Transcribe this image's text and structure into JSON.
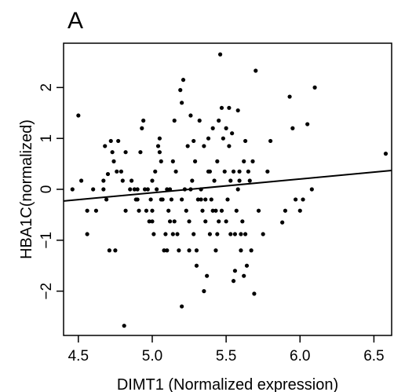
{
  "chart_data": {
    "type": "scatter",
    "panel_label": "A",
    "xlabel": "DIMT1 (Normalized expression)",
    "ylabel": "HBA1C(normalized)",
    "xlim": [
      4.4,
      6.62
    ],
    "ylim": [
      -2.87,
      2.87
    ],
    "x_ticks": [
      4.5,
      5.0,
      5.5,
      6.0,
      6.5
    ],
    "x_tick_labels": [
      "4.5",
      "5.0",
      "5.5",
      "6.0",
      "6.5"
    ],
    "y_ticks": [
      -2,
      -1,
      0,
      1,
      2
    ],
    "y_tick_labels": [
      "−2",
      "−1",
      "0",
      "1",
      "2"
    ],
    "grid": false,
    "fit_line": {
      "x": [
        4.4,
        6.62
      ],
      "y": [
        -0.23,
        0.37
      ]
    },
    "points": [
      [
        4.46,
        0.0
      ],
      [
        4.5,
        1.45
      ],
      [
        4.52,
        0.17
      ],
      [
        4.56,
        -0.42
      ],
      [
        4.56,
        -0.88
      ],
      [
        4.6,
        0.0
      ],
      [
        4.62,
        -0.42
      ],
      [
        4.67,
        0.17
      ],
      [
        4.67,
        0.0
      ],
      [
        4.68,
        0.85
      ],
      [
        4.69,
        -0.2
      ],
      [
        4.7,
        0.3
      ],
      [
        4.71,
        -1.2
      ],
      [
        4.72,
        0.95
      ],
      [
        4.73,
        0.73
      ],
      [
        4.74,
        0.55
      ],
      [
        4.75,
        -1.2
      ],
      [
        4.76,
        0.35
      ],
      [
        4.77,
        0.95
      ],
      [
        4.79,
        0.35
      ],
      [
        4.8,
        0.17
      ],
      [
        4.82,
        -0.42
      ],
      [
        4.81,
        -2.68
      ],
      [
        4.85,
        0.0
      ],
      [
        4.86,
        0.17
      ],
      [
        4.88,
        0.0
      ],
      [
        4.89,
        -0.2
      ],
      [
        4.9,
        0.0
      ],
      [
        4.91,
        -0.42
      ],
      [
        4.92,
        0.73
      ],
      [
        4.93,
        1.2
      ],
      [
        4.94,
        1.35
      ],
      [
        4.95,
        0.0
      ],
      [
        4.96,
        -0.42
      ],
      [
        4.97,
        0.0
      ],
      [
        4.98,
        -0.63
      ],
      [
        4.99,
        -0.2
      ],
      [
        5.0,
        -0.42
      ],
      [
        5.01,
        -0.88
      ],
      [
        5.02,
        0.35
      ],
      [
        5.03,
        0.0
      ],
      [
        5.04,
        0.85
      ],
      [
        5.05,
        0.73
      ],
      [
        5.06,
        0.55
      ],
      [
        5.07,
        -0.2
      ],
      [
        5.08,
        -1.2
      ],
      [
        5.09,
        -0.88
      ],
      [
        5.1,
        -1.2
      ],
      [
        5.11,
        -0.42
      ],
      [
        5.12,
        0.0
      ],
      [
        5.13,
        -0.2
      ],
      [
        5.14,
        0.55
      ],
      [
        5.15,
        -0.63
      ],
      [
        5.16,
        0.35
      ],
      [
        5.17,
        -0.88
      ],
      [
        5.18,
        -1.2
      ],
      [
        5.19,
        1.95
      ],
      [
        5.2,
        1.7
      ],
      [
        5.21,
        2.15
      ],
      [
        5.22,
        0.0
      ],
      [
        5.23,
        -0.42
      ],
      [
        5.24,
        0.85
      ],
      [
        5.25,
        -0.63
      ],
      [
        5.26,
        1.45
      ],
      [
        5.27,
        0.17
      ],
      [
        5.28,
        -0.88
      ],
      [
        5.29,
        0.55
      ],
      [
        5.3,
        -1.2
      ],
      [
        5.31,
        -0.2
      ],
      [
        5.32,
        1.35
      ],
      [
        5.33,
        0.0
      ],
      [
        5.34,
        -0.42
      ],
      [
        5.35,
        0.85
      ],
      [
        5.36,
        -0.63
      ],
      [
        5.37,
        -1.7
      ],
      [
        5.38,
        0.35
      ],
      [
        5.39,
        -0.88
      ],
      [
        5.4,
        -0.2
      ],
      [
        5.41,
        1.2
      ],
      [
        5.42,
        0.17
      ],
      [
        5.43,
        -0.42
      ],
      [
        5.44,
        0.55
      ],
      [
        5.45,
        -0.63
      ],
      [
        5.46,
        2.65
      ],
      [
        5.47,
        1.6
      ],
      [
        5.48,
        1.0
      ],
      [
        5.49,
        0.35
      ],
      [
        5.5,
        1.2
      ],
      [
        5.51,
        -0.2
      ],
      [
        5.52,
        0.85
      ],
      [
        5.53,
        -0.88
      ],
      [
        5.54,
        1.1
      ],
      [
        5.55,
        0.35
      ],
      [
        5.56,
        -1.6
      ],
      [
        5.57,
        -0.42
      ],
      [
        5.58,
        0.0
      ],
      [
        5.59,
        0.17
      ],
      [
        5.6,
        -1.2
      ],
      [
        5.61,
        -0.63
      ],
      [
        5.62,
        0.55
      ],
      [
        5.63,
        -0.88
      ],
      [
        5.64,
        -1.5
      ],
      [
        5.65,
        0.35
      ],
      [
        5.66,
        0.17
      ],
      [
        5.67,
        -1.2
      ],
      [
        5.68,
        0.55
      ],
      [
        5.69,
        -2.05
      ],
      [
        5.7,
        2.33
      ],
      [
        5.72,
        -0.42
      ],
      [
        5.75,
        -0.88
      ],
      [
        5.78,
        0.35
      ],
      [
        5.8,
        0.95
      ],
      [
        5.88,
        -0.65
      ],
      [
        5.9,
        -0.42
      ],
      [
        5.93,
        1.82
      ],
      [
        5.95,
        1.2
      ],
      [
        5.97,
        -0.2
      ],
      [
        6.0,
        -0.42
      ],
      [
        6.02,
        -0.2
      ],
      [
        6.05,
        1.28
      ],
      [
        6.08,
        0.0
      ],
      [
        6.1,
        2.0
      ],
      [
        6.58,
        0.7
      ],
      [
        4.9,
        -0.2
      ],
      [
        5.0,
        0.17
      ],
      [
        5.06,
        -0.2
      ],
      [
        5.1,
        0.0
      ],
      [
        5.14,
        -0.88
      ],
      [
        5.2,
        -0.2
      ],
      [
        5.26,
        0.0
      ],
      [
        5.3,
        -1.5
      ],
      [
        5.33,
        -0.2
      ],
      [
        5.36,
        -0.2
      ],
      [
        5.39,
        0.35
      ],
      [
        5.41,
        -0.42
      ],
      [
        5.44,
        -0.88
      ],
      [
        5.47,
        -0.42
      ],
      [
        5.5,
        -0.63
      ],
      [
        5.53,
        0.17
      ],
      [
        5.56,
        -0.88
      ],
      [
        5.59,
        0.35
      ],
      [
        5.2,
        -2.3
      ],
      [
        5.35,
        -2.0
      ],
      [
        5.55,
        -1.8
      ],
      [
        5.62,
        -1.7
      ],
      [
        4.82,
        0.73
      ],
      [
        5.05,
        1.0
      ],
      [
        5.28,
        0.95
      ],
      [
        5.58,
        1.55
      ],
      [
        5.52,
        1.6
      ],
      [
        5.45,
        1.35
      ],
      [
        5.38,
        1.0
      ],
      [
        5.15,
        1.35
      ],
      [
        5.63,
        0.95
      ],
      [
        5.0,
        -0.63
      ],
      [
        5.12,
        -0.63
      ],
      [
        5.25,
        -1.2
      ],
      [
        5.43,
        -1.2
      ],
      [
        5.6,
        -0.88
      ]
    ]
  }
}
